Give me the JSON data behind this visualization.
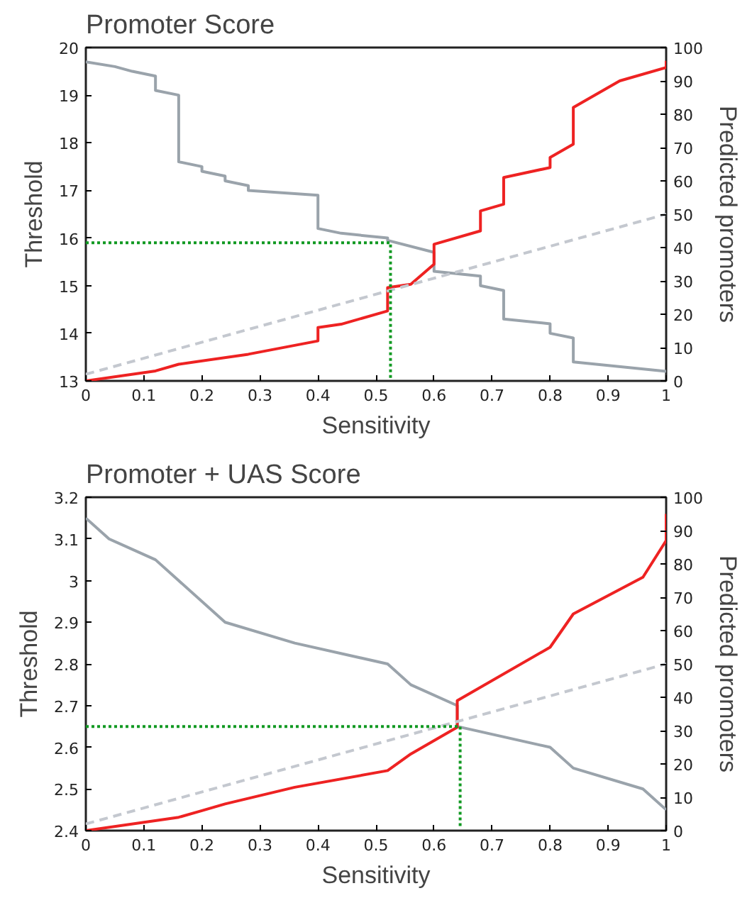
{
  "chart_data": [
    {
      "type": "line",
      "title": "Promoter Score",
      "xlabel": "Sensitivity",
      "ylabel": "Threshold",
      "y2label": "Predicted promoters",
      "xlim": [
        0,
        1
      ],
      "xticks": [
        0,
        0.1,
        0.2,
        0.3,
        0.4,
        0.5,
        0.6,
        0.7,
        0.8,
        0.9,
        1
      ],
      "ylim": [
        13,
        20
      ],
      "yticks": [
        13,
        14,
        15,
        16,
        17,
        18,
        19,
        20
      ],
      "y2lim": [
        0,
        100
      ],
      "y2ticks": [
        0,
        10,
        20,
        30,
        40,
        50,
        60,
        70,
        80,
        90,
        100
      ],
      "series": [
        {
          "color": "#9aa3ab",
          "x": [
            0,
            0.05,
            0.08,
            0.12,
            0.12,
            0.16,
            0.16,
            0.2,
            0.2,
            0.24,
            0.24,
            0.28,
            0.28,
            0.4,
            0.4,
            0.44,
            0.52,
            0.52,
            0.6,
            0.6,
            0.68,
            0.68,
            0.72,
            0.72,
            0.8,
            0.8,
            0.84,
            0.84,
            1
          ],
          "values": [
            19.7,
            19.6,
            19.5,
            19.4,
            19.1,
            19.0,
            17.6,
            17.5,
            17.4,
            17.3,
            17.2,
            17.1,
            17.0,
            16.9,
            16.2,
            16.1,
            16.0,
            15.95,
            15.7,
            15.3,
            15.2,
            15.0,
            14.9,
            14.3,
            14.2,
            14.0,
            13.9,
            13.4,
            13.2
          ]
        },
        {
          "color": "#ee2222",
          "axis": "y2",
          "x": [
            0,
            0.12,
            0.16,
            0.28,
            0.4,
            0.4,
            0.44,
            0.52,
            0.52,
            0.56,
            0.6,
            0.6,
            0.68,
            0.68,
            0.72,
            0.72,
            0.8,
            0.8,
            0.84,
            0.84,
            0.92,
            1,
            1
          ],
          "values": [
            0,
            3,
            5,
            8,
            12,
            16,
            17,
            21,
            28,
            29,
            35,
            41,
            45,
            51,
            53,
            61,
            64,
            67,
            71,
            82,
            90,
            94,
            96
          ]
        },
        {
          "color": "#c4c8cf",
          "axis": "y2",
          "line_style": "dashed",
          "x": [
            0,
            1
          ],
          "values": [
            2,
            50
          ]
        },
        {
          "color": "#119922",
          "line_style": "dotted",
          "x": [
            0,
            0.525,
            0.525
          ],
          "values": [
            15.9,
            15.9,
            13.05
          ]
        }
      ]
    },
    {
      "type": "line",
      "title": "Promoter + UAS Score",
      "xlabel": "Sensitivity",
      "ylabel": "Threshold",
      "y2label": "Predicted promoters",
      "xlim": [
        0,
        1
      ],
      "xticks": [
        0,
        0.1,
        0.2,
        0.3,
        0.4,
        0.5,
        0.6,
        0.7,
        0.8,
        0.9,
        1
      ],
      "ylim": [
        2.4,
        3.2
      ],
      "yticks": [
        2.4,
        2.5,
        2.6,
        2.7,
        2.8,
        2.9,
        3,
        3.1,
        3.2
      ],
      "y2lim": [
        0,
        100
      ],
      "y2ticks": [
        0,
        10,
        20,
        30,
        40,
        50,
        60,
        70,
        80,
        90,
        100
      ],
      "series": [
        {
          "color": "#9aa3ab",
          "x": [
            0,
            0.04,
            0.12,
            0.16,
            0.24,
            0.36,
            0.52,
            0.56,
            0.64,
            0.64,
            0.8,
            0.84,
            0.96,
            1
          ],
          "values": [
            3.15,
            3.1,
            3.05,
            3.0,
            2.9,
            2.85,
            2.8,
            2.75,
            2.7,
            2.65,
            2.6,
            2.55,
            2.5,
            2.45
          ]
        },
        {
          "color": "#ee2222",
          "axis": "y2",
          "x": [
            0,
            0.16,
            0.2,
            0.24,
            0.36,
            0.52,
            0.56,
            0.64,
            0.64,
            0.8,
            0.84,
            0.96,
            1,
            1
          ],
          "values": [
            0,
            4,
            6,
            8,
            13,
            18,
            23,
            31,
            39,
            55,
            65,
            76,
            87,
            95
          ]
        },
        {
          "color": "#c4c8cf",
          "axis": "y2",
          "line_style": "dashed",
          "x": [
            0,
            1
          ],
          "values": [
            2,
            50
          ]
        },
        {
          "color": "#119922",
          "line_style": "dotted",
          "x": [
            0,
            0.645,
            0.645
          ],
          "values": [
            2.65,
            2.65,
            2.41
          ]
        }
      ]
    }
  ]
}
